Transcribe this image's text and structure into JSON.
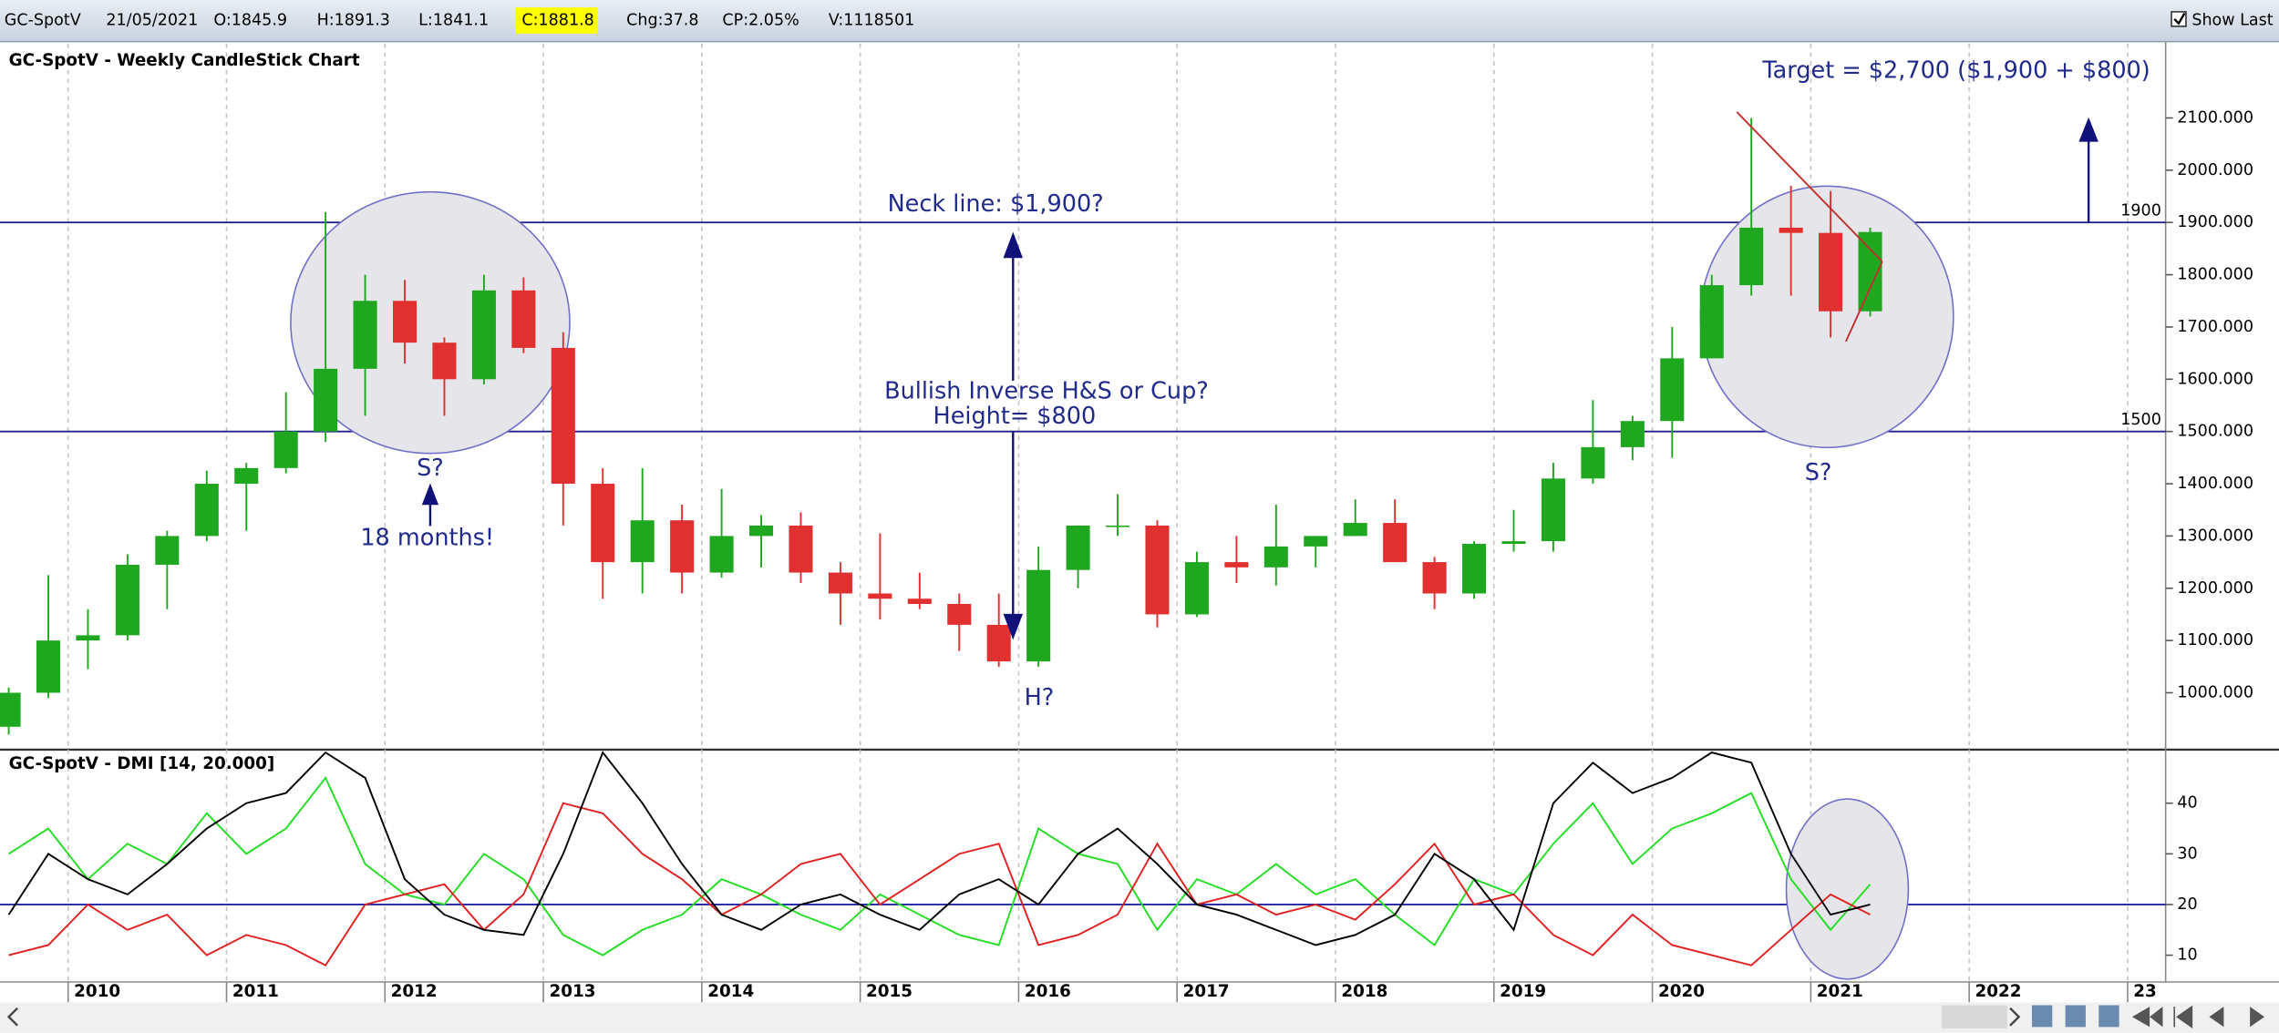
{
  "header": {
    "symbol": "GC-SpotV",
    "date": "21/05/2021",
    "open": "O:1845.9",
    "high": "H:1891.3",
    "low": "L:1841.1",
    "close": "C:1881.8",
    "change": "Chg:37.8",
    "change_pct": "CP:2.05%",
    "volume": "V:1118501",
    "show_last": "Show Last"
  },
  "chart_data": [
    {
      "type": "candlestick",
      "title": "GC-SpotV - Weekly CandleStick Chart",
      "x": [
        2009.625,
        2009.875,
        2010.125,
        2010.375,
        2010.625,
        2010.875,
        2011.125,
        2011.375,
        2011.625,
        2011.875,
        2012.125,
        2012.375,
        2012.625,
        2012.875,
        2013.125,
        2013.375,
        2013.625,
        2013.875,
        2014.125,
        2014.375,
        2014.625,
        2014.875,
        2015.125,
        2015.375,
        2015.625,
        2015.875,
        2016.125,
        2016.375,
        2016.625,
        2016.875,
        2017.125,
        2017.375,
        2017.625,
        2017.875,
        2018.125,
        2018.375,
        2018.625,
        2018.875,
        2019.125,
        2019.375,
        2019.625,
        2019.875,
        2020.125,
        2020.375,
        2020.625,
        2020.875,
        2021.125,
        2021.375
      ],
      "open": [
        935,
        1000,
        1100,
        1110,
        1245,
        1300,
        1400,
        1430,
        1500,
        1620,
        1750,
        1670,
        1600,
        1770,
        1660,
        1400,
        1250,
        1330,
        1230,
        1300,
        1320,
        1230,
        1190,
        1180,
        1170,
        1130,
        1060,
        1235,
        1320,
        1320,
        1150,
        1250,
        1240,
        1280,
        1300,
        1325,
        1250,
        1190,
        1285,
        1290,
        1410,
        1470,
        1520,
        1640,
        1780,
        1890,
        1880,
        1730
      ],
      "high": [
        1010,
        1225,
        1160,
        1265,
        1310,
        1425,
        1440,
        1575,
        1920,
        1800,
        1790,
        1680,
        1800,
        1795,
        1690,
        1430,
        1430,
        1360,
        1390,
        1340,
        1345,
        1250,
        1305,
        1230,
        1190,
        1190,
        1280,
        1320,
        1380,
        1330,
        1270,
        1300,
        1360,
        1300,
        1370,
        1370,
        1260,
        1290,
        1350,
        1440,
        1560,
        1530,
        1700,
        1800,
        2100,
        1970,
        1960,
        1890
      ],
      "low": [
        920,
        990,
        1045,
        1100,
        1160,
        1290,
        1310,
        1420,
        1480,
        1530,
        1630,
        1530,
        1590,
        1650,
        1320,
        1180,
        1190,
        1190,
        1220,
        1240,
        1210,
        1130,
        1140,
        1160,
        1080,
        1050,
        1050,
        1200,
        1300,
        1125,
        1145,
        1210,
        1205,
        1240,
        1300,
        1250,
        1160,
        1180,
        1270,
        1270,
        1400,
        1445,
        1450,
        1640,
        1760,
        1760,
        1680,
        1720
      ],
      "close": [
        1000,
        1100,
        1110,
        1245,
        1300,
        1400,
        1430,
        1500,
        1620,
        1750,
        1670,
        1600,
        1770,
        1660,
        1400,
        1250,
        1330,
        1230,
        1300,
        1320,
        1230,
        1190,
        1180,
        1170,
        1130,
        1060,
        1235,
        1320,
        1320,
        1150,
        1250,
        1240,
        1280,
        1300,
        1325,
        1250,
        1190,
        1285,
        1290,
        1410,
        1470,
        1520,
        1640,
        1780,
        1890,
        1880,
        1730,
        1881.8
      ],
      "up_color": "#1fa81f",
      "down_color": "#e03030",
      "xlim": [
        2009.57,
        2023.24
      ],
      "ylim": [
        894,
        2242
      ],
      "xticks": [
        2010,
        2011,
        2012,
        2013,
        2014,
        2015,
        2016,
        2017,
        2018,
        2019,
        2020,
        2021,
        2022,
        {
          "value": 2023,
          "label": "23"
        }
      ],
      "yticks": [
        {
          "value": 1000,
          "label": "1000.000"
        },
        {
          "value": 1100,
          "label": "1100.000"
        },
        {
          "value": 1200,
          "label": "1200.000"
        },
        {
          "value": 1300,
          "label": "1300.000"
        },
        {
          "value": 1400,
          "label": "1400.000"
        },
        {
          "value": 1500,
          "label": "1500.000"
        },
        {
          "value": 1600,
          "label": "1600.000"
        },
        {
          "value": 1700,
          "label": "1700.000"
        },
        {
          "value": 1800,
          "label": "1800.000"
        },
        {
          "value": 1900,
          "label": "1900.000"
        },
        {
          "value": 2000,
          "label": "2000.000"
        },
        {
          "value": 2100,
          "label": "2100.000"
        }
      ],
      "grid": true,
      "hlines": [
        {
          "value": 1900,
          "label": "1900"
        },
        {
          "value": 1500,
          "label": "1500"
        }
      ],
      "annotations": [
        "Target = $2,700 ($1,900 + $800)",
        "Neck line: $1,900?",
        "Bullish Inverse H&S or Cup?",
        "Height= $800",
        "S?",
        "S?",
        "18 months!",
        "H?"
      ]
    },
    {
      "type": "line",
      "title": "GC-SpotV - DMI [14, 20.000]",
      "x": [
        2009.625,
        2009.875,
        2010.125,
        2010.375,
        2010.625,
        2010.875,
        2011.125,
        2011.375,
        2011.625,
        2011.875,
        2012.125,
        2012.375,
        2012.625,
        2012.875,
        2013.125,
        2013.375,
        2013.625,
        2013.875,
        2014.125,
        2014.375,
        2014.625,
        2014.875,
        2015.125,
        2015.375,
        2015.625,
        2015.875,
        2016.125,
        2016.375,
        2016.625,
        2016.875,
        2017.125,
        2017.375,
        2017.625,
        2017.875,
        2018.125,
        2018.375,
        2018.625,
        2018.875,
        2019.125,
        2019.375,
        2019.625,
        2019.875,
        2020.125,
        2020.375,
        2020.625,
        2020.875,
        2021.125,
        2021.375
      ],
      "series": [
        {
          "color": "#22dd22",
          "values": [
            30,
            35,
            25,
            32,
            28,
            38,
            30,
            35,
            45,
            28,
            22,
            20,
            30,
            25,
            14,
            10,
            15,
            18,
            25,
            22,
            18,
            15,
            22,
            18,
            14,
            12,
            35,
            30,
            28,
            15,
            25,
            22,
            28,
            22,
            25,
            18,
            12,
            25,
            22,
            32,
            40,
            28,
            35,
            38,
            42,
            25,
            15,
            24
          ]
        },
        {
          "color": "#e02020",
          "values": [
            10,
            12,
            20,
            15,
            18,
            10,
            14,
            12,
            8,
            20,
            22,
            24,
            15,
            22,
            40,
            38,
            30,
            25,
            18,
            22,
            28,
            30,
            20,
            25,
            30,
            32,
            12,
            14,
            18,
            32,
            20,
            22,
            18,
            20,
            17,
            24,
            32,
            20,
            22,
            14,
            10,
            18,
            12,
            10,
            8,
            15,
            22,
            18
          ]
        },
        {
          "color": "#000000",
          "values": [
            18,
            30,
            25,
            22,
            28,
            35,
            40,
            42,
            50,
            45,
            25,
            18,
            15,
            14,
            30,
            50,
            40,
            28,
            18,
            15,
            20,
            22,
            18,
            15,
            22,
            25,
            20,
            30,
            35,
            28,
            20,
            18,
            15,
            12,
            14,
            18,
            30,
            25,
            15,
            40,
            48,
            42,
            45,
            50,
            48,
            30,
            18,
            20
          ]
        }
      ],
      "threshold": 20,
      "xlim": [
        2009.57,
        2023.24
      ],
      "ylim": [
        5,
        50
      ],
      "yticks": [
        10,
        20,
        30,
        40
      ]
    }
  ]
}
